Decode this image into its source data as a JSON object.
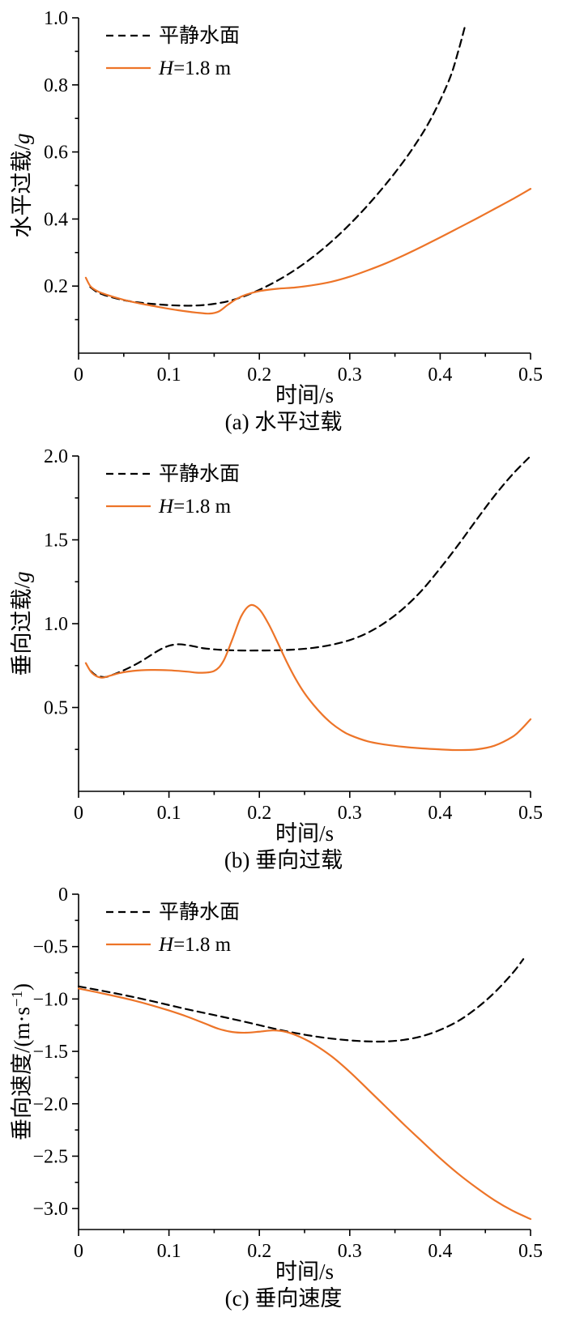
{
  "figure": {
    "background": "#ffffff",
    "colors": {
      "calm_water": "#000000",
      "wave_h18": "#ed7428"
    }
  },
  "charts": [
    {
      "caption": "(a) 水平过载"
    },
    {
      "caption": "(b) 垂向过载"
    },
    {
      "caption": "(c) 垂向速度"
    }
  ],
  "chart_data": [
    {
      "type": "line",
      "title": "(a) 水平过载",
      "xlabel": "时间/s",
      "ylabel": "水平过载/g",
      "xlabel_parts": [
        {
          "text": "时间/s"
        }
      ],
      "ylabel_parts": [
        {
          "text": "水平过载/"
        },
        {
          "text": "g",
          "italic": true
        }
      ],
      "xlim": [
        0,
        0.5
      ],
      "ylim": [
        0,
        1.0
      ],
      "grid": false,
      "legend_position": "top-left",
      "xticks": [
        {
          "v": 0,
          "label": "0"
        },
        {
          "v": 0.1,
          "label": "0.1"
        },
        {
          "v": 0.2,
          "label": "0.2"
        },
        {
          "v": 0.3,
          "label": "0.3"
        },
        {
          "v": 0.4,
          "label": "0.4"
        },
        {
          "v": 0.5,
          "label": "0.5"
        }
      ],
      "yticks": [
        {
          "v": 0.2,
          "label": "0.2"
        },
        {
          "v": 0.4,
          "label": "0.4"
        },
        {
          "v": 0.6,
          "label": "0.6"
        },
        {
          "v": 0.8,
          "label": "0.8"
        },
        {
          "v": 1.0,
          "label": "1.0"
        }
      ],
      "xminor": [
        0.05,
        0.15,
        0.25,
        0.35,
        0.45
      ],
      "yminor": [
        0.1,
        0.3,
        0.5,
        0.7,
        0.9
      ],
      "series": [
        {
          "name": "平静水面",
          "style": "dashed",
          "color": "#000000",
          "label_parts": [
            {
              "text": "平静水面"
            }
          ],
          "points": [
            [
              0.013,
              0.197
            ],
            [
              0.02,
              0.183
            ],
            [
              0.03,
              0.172
            ],
            [
              0.05,
              0.158
            ],
            [
              0.07,
              0.15
            ],
            [
              0.09,
              0.145
            ],
            [
              0.11,
              0.142
            ],
            [
              0.13,
              0.142
            ],
            [
              0.15,
              0.147
            ],
            [
              0.17,
              0.158
            ],
            [
              0.19,
              0.177
            ],
            [
              0.21,
              0.202
            ],
            [
              0.23,
              0.232
            ],
            [
              0.25,
              0.268
            ],
            [
              0.27,
              0.31
            ],
            [
              0.29,
              0.358
            ],
            [
              0.31,
              0.412
            ],
            [
              0.33,
              0.472
            ],
            [
              0.35,
              0.538
            ],
            [
              0.37,
              0.612
            ],
            [
              0.39,
              0.7
            ],
            [
              0.41,
              0.815
            ],
            [
              0.42,
              0.9
            ],
            [
              0.427,
              0.97
            ]
          ]
        },
        {
          "name": "H=1.8 m",
          "style": "solid",
          "color": "#ed7428",
          "label_parts": [
            {
              "text": "H",
              "italic": true
            },
            {
              "text": "=1.8 m"
            }
          ],
          "points": [
            [
              0.008,
              0.225
            ],
            [
              0.013,
              0.2
            ],
            [
              0.02,
              0.186
            ],
            [
              0.03,
              0.175
            ],
            [
              0.05,
              0.159
            ],
            [
              0.07,
              0.147
            ],
            [
              0.09,
              0.137
            ],
            [
              0.11,
              0.128
            ],
            [
              0.13,
              0.121
            ],
            [
              0.145,
              0.118
            ],
            [
              0.155,
              0.124
            ],
            [
              0.165,
              0.144
            ],
            [
              0.175,
              0.162
            ],
            [
              0.185,
              0.174
            ],
            [
              0.2,
              0.185
            ],
            [
              0.22,
              0.192
            ],
            [
              0.24,
              0.196
            ],
            [
              0.26,
              0.203
            ],
            [
              0.28,
              0.213
            ],
            [
              0.3,
              0.228
            ],
            [
              0.32,
              0.247
            ],
            [
              0.34,
              0.268
            ],
            [
              0.36,
              0.292
            ],
            [
              0.38,
              0.318
            ],
            [
              0.4,
              0.345
            ],
            [
              0.42,
              0.373
            ],
            [
              0.44,
              0.401
            ],
            [
              0.46,
              0.43
            ],
            [
              0.48,
              0.459
            ],
            [
              0.5,
              0.49
            ]
          ]
        }
      ]
    },
    {
      "type": "line",
      "title": "(b) 垂向过载",
      "xlabel": "时间/s",
      "ylabel": "垂向过载/g",
      "xlabel_parts": [
        {
          "text": "时间/s"
        }
      ],
      "ylabel_parts": [
        {
          "text": "垂向过载/"
        },
        {
          "text": "g",
          "italic": true
        }
      ],
      "xlim": [
        0,
        0.5
      ],
      "ylim": [
        0,
        2.0
      ],
      "grid": false,
      "legend_position": "top-left",
      "xticks": [
        {
          "v": 0,
          "label": "0"
        },
        {
          "v": 0.1,
          "label": "0.1"
        },
        {
          "v": 0.2,
          "label": "0.2"
        },
        {
          "v": 0.3,
          "label": "0.3"
        },
        {
          "v": 0.4,
          "label": "0.4"
        },
        {
          "v": 0.5,
          "label": "0.5"
        }
      ],
      "yticks": [
        {
          "v": 0.5,
          "label": "0.5"
        },
        {
          "v": 1.0,
          "label": "1.0"
        },
        {
          "v": 1.5,
          "label": "1.5"
        },
        {
          "v": 2.0,
          "label": "2.0"
        }
      ],
      "xminor": [
        0.05,
        0.15,
        0.25,
        0.35,
        0.45
      ],
      "yminor": [
        0.25,
        0.75,
        1.25,
        1.75
      ],
      "series": [
        {
          "name": "平静水面",
          "style": "dashed",
          "color": "#000000",
          "label_parts": [
            {
              "text": "平静水面"
            }
          ],
          "points": [
            [
              0.013,
              0.72
            ],
            [
              0.02,
              0.69
            ],
            [
              0.03,
              0.682
            ],
            [
              0.04,
              0.7
            ],
            [
              0.05,
              0.722
            ],
            [
              0.06,
              0.748
            ],
            [
              0.07,
              0.778
            ],
            [
              0.08,
              0.812
            ],
            [
              0.09,
              0.845
            ],
            [
              0.1,
              0.868
            ],
            [
              0.11,
              0.877
            ],
            [
              0.12,
              0.872
            ],
            [
              0.13,
              0.862
            ],
            [
              0.14,
              0.852
            ],
            [
              0.16,
              0.843
            ],
            [
              0.18,
              0.84
            ],
            [
              0.2,
              0.84
            ],
            [
              0.22,
              0.841
            ],
            [
              0.24,
              0.846
            ],
            [
              0.26,
              0.856
            ],
            [
              0.28,
              0.874
            ],
            [
              0.3,
              0.902
            ],
            [
              0.32,
              0.946
            ],
            [
              0.34,
              1.01
            ],
            [
              0.36,
              1.094
            ],
            [
              0.38,
              1.2
            ],
            [
              0.4,
              1.33
            ],
            [
              0.42,
              1.47
            ],
            [
              0.44,
              1.618
            ],
            [
              0.46,
              1.762
            ],
            [
              0.48,
              1.89
            ],
            [
              0.5,
              2.0
            ]
          ]
        },
        {
          "name": "H=1.8 m",
          "style": "solid",
          "color": "#ed7428",
          "label_parts": [
            {
              "text": "H",
              "italic": true
            },
            {
              "text": "=1.8 m"
            }
          ],
          "points": [
            [
              0.008,
              0.765
            ],
            [
              0.015,
              0.705
            ],
            [
              0.025,
              0.678
            ],
            [
              0.035,
              0.69
            ],
            [
              0.045,
              0.705
            ],
            [
              0.06,
              0.718
            ],
            [
              0.08,
              0.724
            ],
            [
              0.1,
              0.722
            ],
            [
              0.12,
              0.714
            ],
            [
              0.135,
              0.707
            ],
            [
              0.15,
              0.718
            ],
            [
              0.16,
              0.775
            ],
            [
              0.17,
              0.905
            ],
            [
              0.18,
              1.045
            ],
            [
              0.19,
              1.11
            ],
            [
              0.2,
              1.085
            ],
            [
              0.21,
              1.0
            ],
            [
              0.22,
              0.89
            ],
            [
              0.23,
              0.775
            ],
            [
              0.24,
              0.672
            ],
            [
              0.25,
              0.585
            ],
            [
              0.26,
              0.515
            ],
            [
              0.27,
              0.455
            ],
            [
              0.28,
              0.405
            ],
            [
              0.29,
              0.366
            ],
            [
              0.3,
              0.336
            ],
            [
              0.32,
              0.298
            ],
            [
              0.34,
              0.278
            ],
            [
              0.36,
              0.265
            ],
            [
              0.38,
              0.256
            ],
            [
              0.4,
              0.25
            ],
            [
              0.42,
              0.246
            ],
            [
              0.44,
              0.25
            ],
            [
              0.46,
              0.272
            ],
            [
              0.48,
              0.325
            ],
            [
              0.49,
              0.372
            ],
            [
              0.5,
              0.43
            ]
          ]
        }
      ]
    },
    {
      "type": "line",
      "title": "(c) 垂向速度",
      "xlabel": "时间/s",
      "ylabel": "垂向速度/(m·s−1)",
      "xlabel_parts": [
        {
          "text": "时间/s"
        }
      ],
      "ylabel_parts": [
        {
          "text": "垂向速度/(m·s"
        },
        {
          "text": "−1",
          "sup": true
        },
        {
          "text": ")"
        }
      ],
      "xlim": [
        0,
        0.5
      ],
      "ylim": [
        -3.2,
        0
      ],
      "grid": false,
      "legend_position": "top-left",
      "xticks": [
        {
          "v": 0,
          "label": "0"
        },
        {
          "v": 0.1,
          "label": "0.1"
        },
        {
          "v": 0.2,
          "label": "0.2"
        },
        {
          "v": 0.3,
          "label": "0.3"
        },
        {
          "v": 0.4,
          "label": "0.4"
        },
        {
          "v": 0.5,
          "label": "0.5"
        }
      ],
      "yticks": [
        {
          "v": 0,
          "label": "0"
        },
        {
          "v": -0.5,
          "label": "−0.5"
        },
        {
          "v": -1.0,
          "label": "−1.0"
        },
        {
          "v": -1.5,
          "label": "−1.5"
        },
        {
          "v": -2.0,
          "label": "−2.0"
        },
        {
          "v": -2.5,
          "label": "−2.5"
        },
        {
          "v": -3.0,
          "label": "−3.0"
        }
      ],
      "xminor": [
        0.05,
        0.15,
        0.25,
        0.35,
        0.45
      ],
      "yminor": [
        -0.25,
        -0.75,
        -1.25,
        -1.75,
        -2.25,
        -2.75
      ],
      "series": [
        {
          "name": "平静水面",
          "style": "dashed",
          "color": "#000000",
          "label_parts": [
            {
              "text": "平静水面"
            }
          ],
          "points": [
            [
              0.0,
              -0.88
            ],
            [
              0.02,
              -0.912
            ],
            [
              0.04,
              -0.945
            ],
            [
              0.06,
              -0.98
            ],
            [
              0.08,
              -1.018
            ],
            [
              0.1,
              -1.058
            ],
            [
              0.12,
              -1.098
            ],
            [
              0.14,
              -1.135
            ],
            [
              0.16,
              -1.172
            ],
            [
              0.18,
              -1.21
            ],
            [
              0.2,
              -1.25
            ],
            [
              0.22,
              -1.29
            ],
            [
              0.24,
              -1.325
            ],
            [
              0.26,
              -1.355
            ],
            [
              0.28,
              -1.378
            ],
            [
              0.3,
              -1.395
            ],
            [
              0.32,
              -1.405
            ],
            [
              0.34,
              -1.405
            ],
            [
              0.36,
              -1.39
            ],
            [
              0.38,
              -1.355
            ],
            [
              0.4,
              -1.295
            ],
            [
              0.42,
              -1.21
            ],
            [
              0.44,
              -1.09
            ],
            [
              0.46,
              -0.94
            ],
            [
              0.48,
              -0.755
            ],
            [
              0.492,
              -0.62
            ]
          ]
        },
        {
          "name": "H=1.8 m",
          "style": "solid",
          "color": "#ed7428",
          "label_parts": [
            {
              "text": "H",
              "italic": true
            },
            {
              "text": "=1.8 m"
            }
          ],
          "points": [
            [
              0.0,
              -0.9
            ],
            [
              0.02,
              -0.935
            ],
            [
              0.04,
              -0.972
            ],
            [
              0.06,
              -1.012
            ],
            [
              0.08,
              -1.058
            ],
            [
              0.1,
              -1.11
            ],
            [
              0.12,
              -1.168
            ],
            [
              0.14,
              -1.235
            ],
            [
              0.155,
              -1.285
            ],
            [
              0.17,
              -1.315
            ],
            [
              0.185,
              -1.322
            ],
            [
              0.2,
              -1.312
            ],
            [
              0.215,
              -1.3
            ],
            [
              0.23,
              -1.315
            ],
            [
              0.245,
              -1.362
            ],
            [
              0.26,
              -1.43
            ],
            [
              0.28,
              -1.548
            ],
            [
              0.3,
              -1.696
            ],
            [
              0.32,
              -1.862
            ],
            [
              0.34,
              -2.03
            ],
            [
              0.36,
              -2.198
            ],
            [
              0.38,
              -2.36
            ],
            [
              0.4,
              -2.52
            ],
            [
              0.42,
              -2.668
            ],
            [
              0.44,
              -2.8
            ],
            [
              0.46,
              -2.92
            ],
            [
              0.48,
              -3.02
            ],
            [
              0.5,
              -3.1
            ]
          ]
        }
      ]
    }
  ]
}
